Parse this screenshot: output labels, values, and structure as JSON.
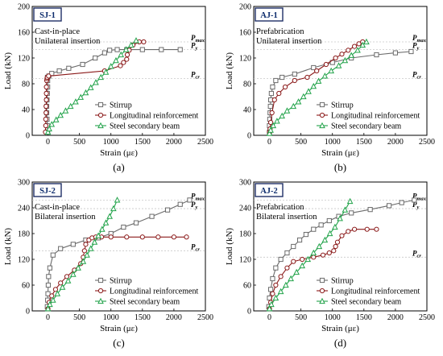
{
  "chart_data": [
    {
      "type": "line",
      "caption": "(a)",
      "tag": "SJ-1",
      "notes": [
        "Cast-in-place",
        "Unilateral insertion"
      ],
      "xlabel": "Strain (με)",
      "ylabel": "Load (kN)",
      "xlim": [
        -250,
        2500
      ],
      "ylim": [
        0,
        200
      ],
      "xticks": [
        0,
        500,
        1000,
        1500,
        2000,
        2500
      ],
      "yticks": [
        0,
        40,
        80,
        120,
        160,
        200
      ],
      "legend_position": "bottom-right",
      "reference_lines": [
        {
          "label": "Pmax",
          "y": 145
        },
        {
          "label": "Py",
          "y": 133
        },
        {
          "label": "Pcr",
          "y": 88
        }
      ],
      "series": [
        {
          "name": "Stirrup",
          "color": "#6b6b6b",
          "marker": "square",
          "x": [
            -5,
            -10,
            -15,
            -20,
            -20,
            -15,
            -10,
            -5,
            -5,
            -8,
            15,
            60,
            180,
            330,
            550,
            750,
            900,
            980,
            1100,
            1250,
            1500,
            1800,
            2100
          ],
          "y": [
            5,
            15,
            25,
            35,
            45,
            55,
            65,
            75,
            85,
            90,
            92,
            96,
            100,
            104,
            110,
            120,
            128,
            132,
            133,
            133,
            133,
            133,
            133
          ]
        },
        {
          "name": "Longitudinal reinforcement",
          "color": "#8b1a1a",
          "marker": "circle",
          "x": [
            -40,
            -35,
            -35,
            -30,
            -30,
            -25,
            -25,
            -25,
            -20,
            -15,
            -10,
            10,
            900,
            1150,
            1200,
            1250,
            1260,
            1290,
            1350,
            1450,
            1520
          ],
          "y": [
            5,
            15,
            25,
            35,
            45,
            55,
            65,
            75,
            85,
            88,
            90,
            92,
            100,
            108,
            113,
            118,
            125,
            132,
            140,
            145,
            145
          ]
        },
        {
          "name": "Steel secondary beam",
          "color": "#22a34a",
          "marker": "triangle",
          "x": [
            0,
            20,
            60,
            130,
            200,
            280,
            360,
            440,
            520,
            600,
            680,
            760,
            840,
            920,
            1000,
            1080,
            1160,
            1240,
            1320,
            1400
          ],
          "y": [
            5,
            10,
            17,
            24,
            31,
            38,
            45,
            52,
            59,
            66,
            74,
            82,
            90,
            98,
            107,
            116,
            125,
            133,
            140,
            147
          ]
        }
      ]
    },
    {
      "type": "line",
      "caption": "(b)",
      "tag": "AJ-1",
      "notes": [
        "Prefabrication",
        "Unilateral insertion"
      ],
      "xlabel": "Strain (με)",
      "ylabel": "Load (kN)",
      "xlim": [
        -250,
        2500
      ],
      "ylim": [
        0,
        200
      ],
      "xticks": [
        0,
        500,
        1000,
        1500,
        2000,
        2500
      ],
      "yticks": [
        0,
        40,
        80,
        120,
        160,
        200
      ],
      "legend_position": "bottom-right",
      "reference_lines": [
        {
          "label": "Pmax",
          "y": 145
        },
        {
          "label": "Py",
          "y": 133
        },
        {
          "label": "Pcr",
          "y": 88
        }
      ],
      "series": [
        {
          "name": "Stirrup",
          "color": "#6b6b6b",
          "marker": "square",
          "x": [
            0,
            0,
            5,
            10,
            15,
            20,
            30,
            50,
            100,
            200,
            400,
            700,
            1000,
            1300,
            1700,
            2000,
            2250
          ],
          "y": [
            5,
            15,
            25,
            35,
            45,
            55,
            65,
            75,
            85,
            90,
            95,
            105,
            113,
            120,
            125,
            128,
            130
          ]
        },
        {
          "name": "Longitudinal reinforcement",
          "color": "#8b1a1a",
          "marker": "circle",
          "x": [
            0,
            10,
            20,
            40,
            80,
            150,
            250,
            400,
            600,
            750,
            900,
            1050,
            1150,
            1250,
            1350,
            1420,
            1480
          ],
          "y": [
            5,
            10,
            20,
            35,
            55,
            65,
            75,
            85,
            90,
            100,
            110,
            120,
            126,
            132,
            138,
            142,
            145
          ]
        },
        {
          "name": "Steel secondary beam",
          "color": "#22a34a",
          "marker": "triangle",
          "x": [
            0,
            20,
            60,
            120,
            200,
            280,
            380,
            460,
            540,
            620,
            700,
            780,
            880,
            980,
            1100,
            1200,
            1300,
            1400,
            1480,
            1540
          ],
          "y": [
            3,
            8,
            15,
            22,
            30,
            38,
            45,
            52,
            60,
            68,
            76,
            84,
            92,
            100,
            108,
            116,
            124,
            132,
            140,
            145
          ]
        }
      ]
    },
    {
      "type": "line",
      "caption": "(c)",
      "tag": "SJ-2",
      "notes": [
        "Cast-in-place",
        "Bilateral insertion"
      ],
      "xlabel": "Strain (με)",
      "ylabel": "Load (kN)",
      "xlim": [
        -250,
        2500
      ],
      "ylim": [
        0,
        300
      ],
      "xticks": [
        0,
        500,
        1000,
        1500,
        2000,
        2500
      ],
      "yticks": [
        0,
        60,
        120,
        180,
        240,
        300
      ],
      "legend_position": "bottom-right",
      "reference_lines": [
        {
          "label": "Pmax",
          "y": 258
        },
        {
          "label": "Py",
          "y": 238
        },
        {
          "label": "Pcr",
          "y": 140
        }
      ],
      "series": [
        {
          "name": "Stirrup",
          "color": "#6b6b6b",
          "marker": "square",
          "x": [
            -10,
            -5,
            0,
            5,
            10,
            30,
            80,
            200,
            400,
            600,
            800,
            1000,
            1200,
            1400,
            1650,
            1900,
            2100,
            2250
          ],
          "y": [
            10,
            25,
            40,
            60,
            80,
            100,
            130,
            145,
            155,
            165,
            170,
            180,
            195,
            205,
            220,
            235,
            248,
            258
          ]
        },
        {
          "name": "Longitudinal reinforcement",
          "color": "#8b1a1a",
          "marker": "circle",
          "x": [
            0,
            20,
            60,
            120,
            200,
            300,
            420,
            520,
            560,
            580,
            600,
            650,
            700,
            760,
            850,
            1000,
            1250,
            1500,
            1750,
            2000,
            2200
          ],
          "y": [
            5,
            20,
            35,
            50,
            65,
            80,
            95,
            110,
            125,
            140,
            155,
            165,
            170,
            172,
            172,
            172,
            172,
            172,
            172,
            172,
            172
          ]
        },
        {
          "name": "Steel secondary beam",
          "color": "#22a34a",
          "marker": "triangle",
          "x": [
            0,
            30,
            80,
            150,
            230,
            320,
            400,
            480,
            560,
            620,
            680,
            740,
            800,
            860,
            920,
            980,
            1040,
            1100
          ],
          "y": [
            5,
            15,
            25,
            40,
            55,
            70,
            85,
            100,
            115,
            130,
            145,
            160,
            175,
            190,
            205,
            220,
            238,
            258
          ]
        }
      ]
    },
    {
      "type": "line",
      "caption": "(d)",
      "tag": "AJ-2",
      "notes": [
        "Prefabrication",
        "Bilateral insertion"
      ],
      "xlabel": "Strain (με)",
      "ylabel": "Load (kN)",
      "xlim": [
        -250,
        2500
      ],
      "ylim": [
        0,
        300
      ],
      "xticks": [
        0,
        500,
        1000,
        1500,
        2000,
        2500
      ],
      "yticks": [
        0,
        60,
        120,
        180,
        240,
        300
      ],
      "legend_position": "bottom-right",
      "reference_lines": [
        {
          "label": "Pmax",
          "y": 258
        },
        {
          "label": "Py",
          "y": 238
        },
        {
          "label": "Pcr",
          "y": 125
        }
      ],
      "series": [
        {
          "name": "Stirrup",
          "color": "#6b6b6b",
          "marker": "square",
          "x": [
            -10,
            0,
            20,
            50,
            100,
            180,
            280,
            380,
            480,
            580,
            700,
            820,
            950,
            1100,
            1300,
            1600,
            1900,
            2100,
            2300
          ],
          "y": [
            10,
            30,
            50,
            75,
            100,
            120,
            135,
            150,
            165,
            178,
            190,
            200,
            210,
            220,
            228,
            236,
            245,
            252,
            258
          ]
        },
        {
          "name": "Longitudinal reinforcement",
          "color": "#8b1a1a",
          "marker": "circle",
          "x": [
            0,
            20,
            50,
            100,
            180,
            280,
            380,
            520,
            700,
            850,
            950,
            1020,
            1050,
            1080,
            1150,
            1250,
            1350,
            1550,
            1700
          ],
          "y": [
            5,
            20,
            40,
            60,
            80,
            100,
            115,
            120,
            125,
            130,
            135,
            140,
            150,
            160,
            175,
            185,
            190,
            190,
            190
          ]
        },
        {
          "name": "Steel secondary beam",
          "color": "#22a34a",
          "marker": "triangle",
          "x": [
            0,
            30,
            100,
            180,
            260,
            340,
            430,
            520,
            610,
            700,
            790,
            880,
            960,
            1040,
            1120,
            1200,
            1280
          ],
          "y": [
            5,
            15,
            30,
            45,
            60,
            75,
            90,
            105,
            120,
            135,
            150,
            165,
            180,
            195,
            215,
            235,
            255
          ]
        }
      ]
    }
  ]
}
